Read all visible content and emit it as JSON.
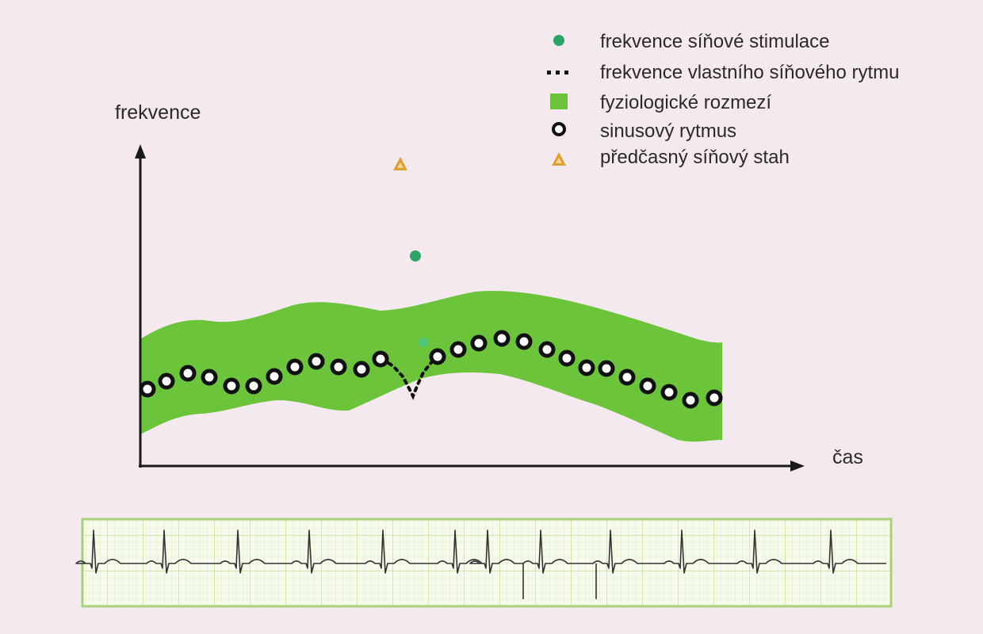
{
  "colors": {
    "background": "#f3e9ee",
    "band": "#6cc43a",
    "pacing_dot": "#2aa564",
    "pacing_dot_light": "#4fc87e",
    "sinus_marker": "#111111",
    "premature_marker": "#e0a030",
    "axis": "#1a1a1a",
    "ecg_grid": "#cfe6a8",
    "ecg_border": "#a8d27a",
    "ecg_trace": "#333333"
  },
  "axes": {
    "y_label": "frekvence",
    "x_label": "čas"
  },
  "legend": [
    {
      "marker": "pacing-dot-icon",
      "label": "frekvence síňové stimulace"
    },
    {
      "marker": "dotted-line-icon",
      "label": "frekvence vlastního síňového rytmu"
    },
    {
      "marker": "green-square-icon",
      "label": "fyziologické rozmezí"
    },
    {
      "marker": "ring-icon",
      "label": "sinusový rytmus"
    },
    {
      "marker": "triangle-icon",
      "label": "předčasný síňový stah"
    }
  ],
  "series": {
    "sinus_rhythm_beats": 28,
    "premature_beats": 1,
    "pacing_events": 2
  }
}
